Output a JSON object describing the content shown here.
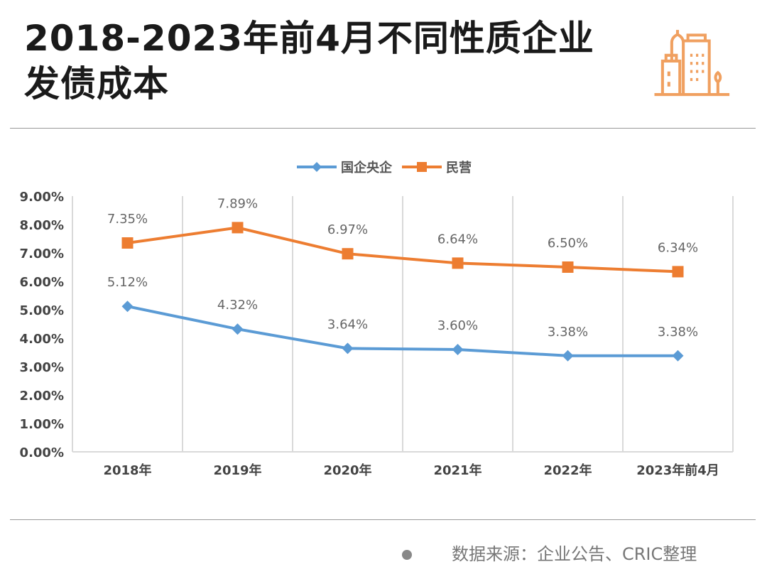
{
  "title": "2018-2023年前4月不同性质企业发债成本",
  "source": "数据来源：企业公告、CRIC整理",
  "icon": "city-buildings-icon",
  "colors": {
    "accent": "#f0a060",
    "blue": "#5b9bd5",
    "orange": "#ed7d31"
  },
  "chart_data": {
    "type": "line",
    "categories": [
      "2018年",
      "2019年",
      "2020年",
      "2021年",
      "2022年",
      "2023年前4月"
    ],
    "series": [
      {
        "name": "国企央企",
        "color": "#5b9bd5",
        "marker": "diamond",
        "values": [
          5.12,
          4.32,
          3.64,
          3.6,
          3.38,
          3.38
        ],
        "labels": [
          "5.12%",
          "4.32%",
          "3.64%",
          "3.60%",
          "3.38%",
          "3.38%"
        ]
      },
      {
        "name": "民营",
        "color": "#ed7d31",
        "marker": "square",
        "values": [
          7.35,
          7.89,
          6.97,
          6.64,
          6.5,
          6.34
        ],
        "labels": [
          "7.35%",
          "7.89%",
          "6.97%",
          "6.64%",
          "6.50%",
          "6.34%"
        ]
      }
    ],
    "yticks": [
      "0.00%",
      "1.00%",
      "2.00%",
      "3.00%",
      "4.00%",
      "5.00%",
      "6.00%",
      "7.00%",
      "8.00%",
      "9.00%"
    ],
    "ylim": [
      0,
      9
    ],
    "grid": "vertical category separators",
    "legend": "top-center"
  }
}
